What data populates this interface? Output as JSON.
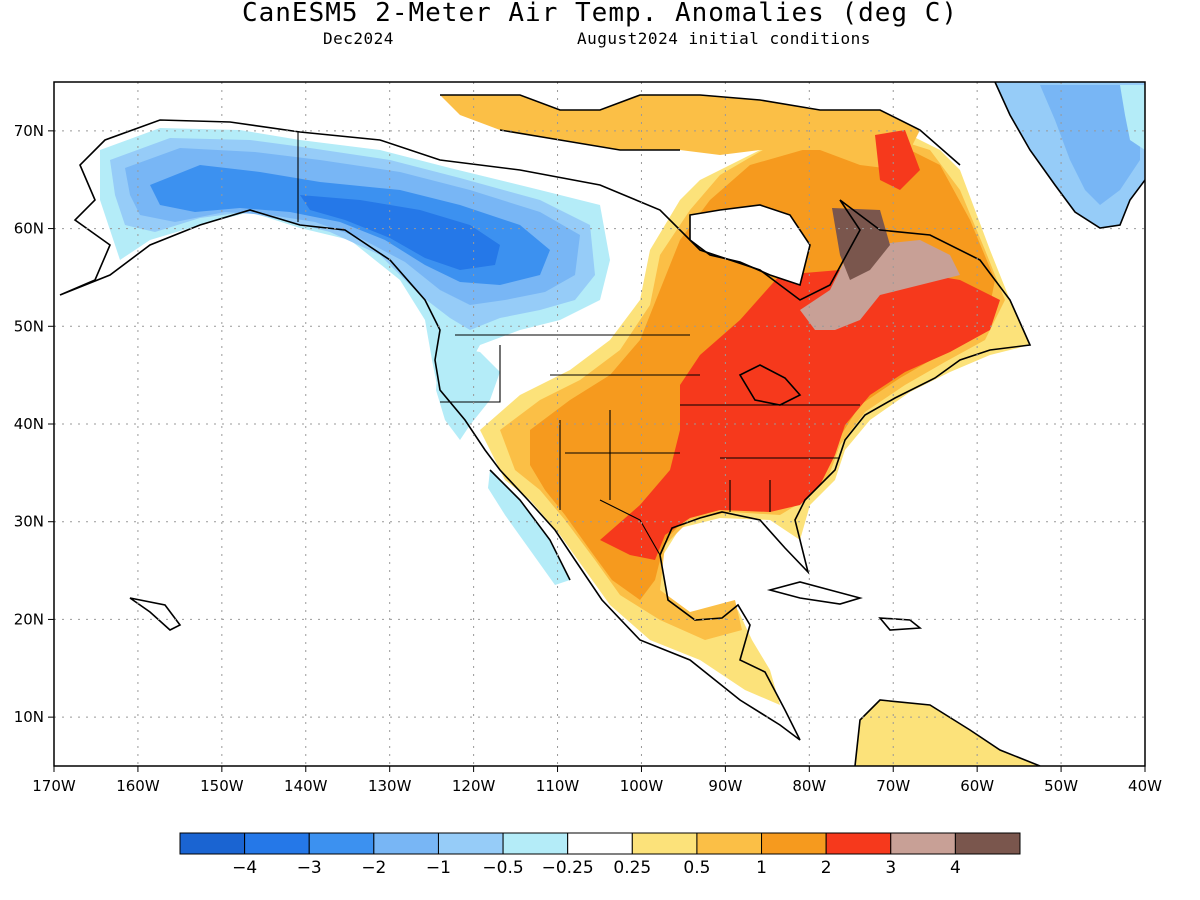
{
  "title": "CanESM5 2-Meter Air Temp. Anomalies (deg C)",
  "subtitle_left": "Dec2024",
  "subtitle_right": "August2024 initial conditions",
  "map": {
    "lon_range": [
      -170,
      -40
    ],
    "lat_range": [
      5,
      75
    ],
    "lon_ticks": [
      {
        "value": -170,
        "label": "170W"
      },
      {
        "value": -160,
        "label": "160W"
      },
      {
        "value": -150,
        "label": "150W"
      },
      {
        "value": -140,
        "label": "140W"
      },
      {
        "value": -130,
        "label": "130W"
      },
      {
        "value": -120,
        "label": "120W"
      },
      {
        "value": -110,
        "label": "110W"
      },
      {
        "value": -100,
        "label": "100W"
      },
      {
        "value": -90,
        "label": "90W"
      },
      {
        "value": -80,
        "label": "80W"
      },
      {
        "value": -70,
        "label": "70W"
      },
      {
        "value": -60,
        "label": "60W"
      },
      {
        "value": -50,
        "label": "50W"
      },
      {
        "value": -40,
        "label": "40W"
      }
    ],
    "lat_ticks": [
      {
        "value": 10,
        "label": "10N"
      },
      {
        "value": 20,
        "label": "20N"
      },
      {
        "value": 30,
        "label": "30N"
      },
      {
        "value": 40,
        "label": "40N"
      },
      {
        "value": 50,
        "label": "50N"
      },
      {
        "value": 60,
        "label": "60N"
      },
      {
        "value": 70,
        "label": "70N"
      }
    ],
    "grid": "dotted"
  },
  "colorbar": {
    "colors": [
      "#1a64d2",
      "#2578e8",
      "#3c91f0",
      "#78b6f5",
      "#96ccf8",
      "#b4ecf8",
      "#ffffff",
      "#fce27a",
      "#fbbf46",
      "#f69a1e",
      "#f6391c",
      "#c8a096",
      "#7a564d"
    ],
    "labels": [
      "−4",
      "−3",
      "−2",
      "−1",
      "−0.5",
      "−0.25",
      "0.25",
      "0.5",
      "1",
      "2",
      "3",
      "4"
    ]
  }
}
